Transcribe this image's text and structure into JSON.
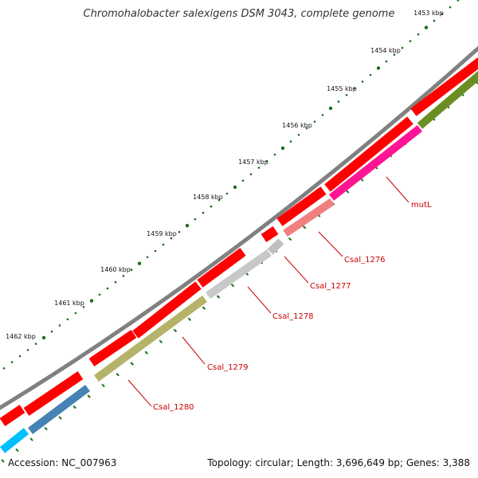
{
  "title": "Chromohalobacter salexigens DSM 3043, complete genome",
  "footer": {
    "accession": "Accession: NC_007963",
    "summary": "Topology: circular; Length: 3,696,649 bp; Genes: 3,388"
  },
  "kbp_labels": [
    "1453 kbp",
    "1454 kbp",
    "1455 kbp",
    "1456 kbp",
    "1457 kbp",
    "1458 kbp",
    "1459 kbp",
    "1460 kbp",
    "1461 kbp",
    "1462 kbp"
  ],
  "gene_labels": [
    "mutL",
    "Csal_1276",
    "Csal_1277",
    "Csal_1278",
    "Csal_1279",
    "Csal_1280"
  ],
  "colors": {
    "backbone": "#808080",
    "cds": "#ff0000",
    "tick": "#1a6e1a",
    "label": "#cc0000",
    "mutL": "#ff1493",
    "Csal_1276": "#f08080",
    "Csal_1277": "#c0c0c0",
    "Csal_1278": "#c8c8c8",
    "Csal_1279": "#b5b36a",
    "Csal_1280": "#4682b4",
    "olive": "#6b8e23",
    "cyan": "#00bfff"
  }
}
